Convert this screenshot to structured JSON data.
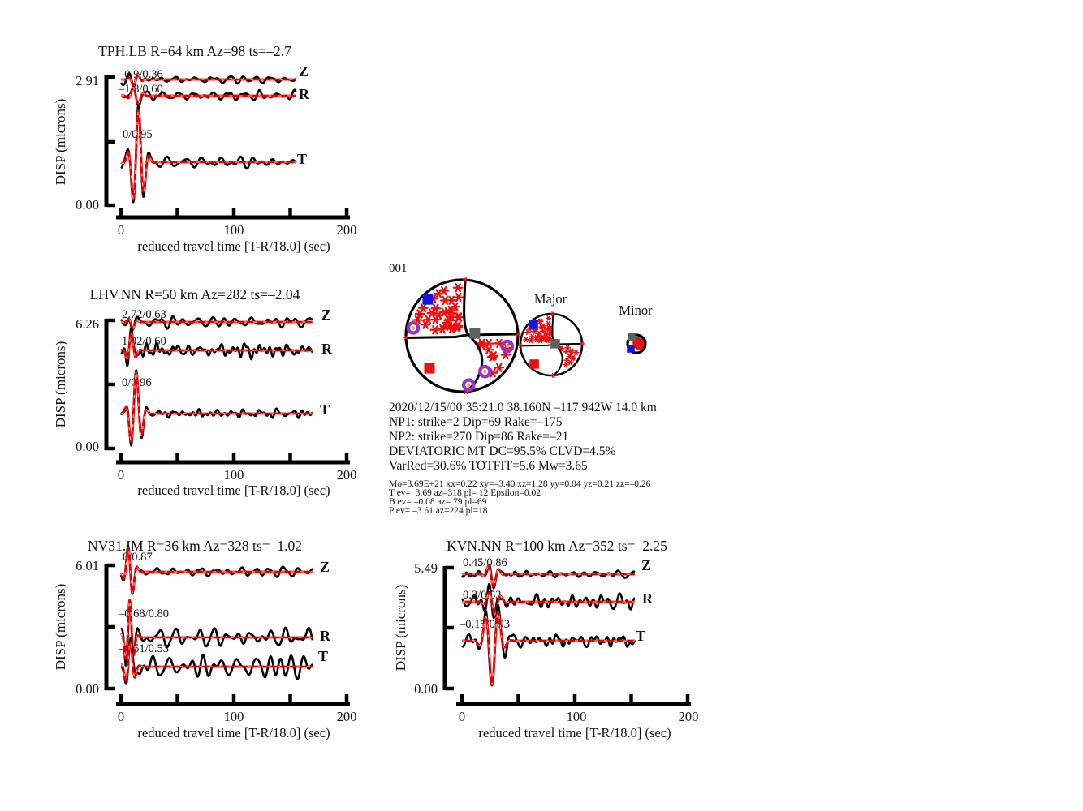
{
  "colors": {
    "data_trace": "#000000",
    "synth_trace": "#e60000",
    "synth_dash": "#ff9a9a",
    "fit_text": "#ac3a32",
    "axis": "#000000",
    "marker_blue": "#1414e0",
    "marker_red": "#e81010",
    "marker_gray": "#5f5f5f",
    "marker_purple": "#9932cc",
    "marker_yellow": "#e8a818",
    "asterisk_red": "#e81010"
  },
  "chart_data": [
    {
      "type": "line",
      "station": "TPH.LB",
      "title": "TPH.LB R=64 km Az=98 ts=–2.7",
      "ylabel": "DISP (microns)",
      "xlabel": "reduced travel time [T-R/18.0] (sec)",
      "ymax": "2.91",
      "ymin": "0.00",
      "ylim_microns": [
        0,
        2.91
      ],
      "xlim": [
        0,
        200
      ],
      "xticks": [
        "0",
        "100",
        "200"
      ],
      "record_length_sec": 155,
      "components": [
        {
          "label": "Z",
          "fit": "–0.9/0.36",
          "wave": {
            "arrival": 13,
            "period": 9,
            "width": 5,
            "amp": 9,
            "phase": 0,
            "noise": 4,
            "seed": 11
          }
        },
        {
          "label": "R",
          "fit": "–1.8/0.60",
          "wave": {
            "arrival": 13,
            "period": 10,
            "width": 6,
            "amp": 13,
            "phase": 3.1,
            "noise": 4.5,
            "seed": 22
          }
        },
        {
          "label": "T",
          "fit": "0/0.95",
          "wave": {
            "arrival": 15,
            "period": 10,
            "width": 7,
            "amp": 72,
            "phase": 1.2,
            "noise": 5,
            "seed": 33
          }
        }
      ]
    },
    {
      "type": "line",
      "station": "LHV.NN",
      "title": "LHV.NN R=50 km Az=282 ts=–2.04",
      "ylabel": "DISP (microns)",
      "xlabel": "reduced travel time [T-R/18.0] (sec)",
      "ymax": "6.26",
      "ymin": "0.00",
      "ylim_microns": [
        0,
        6.26
      ],
      "xlim": [
        0,
        200
      ],
      "xticks": [
        "0",
        "100",
        "200"
      ],
      "record_length_sec": 170,
      "components": [
        {
          "label": "Z",
          "fit": "2.72/0.63",
          "wave": {
            "arrival": 10,
            "period": 9,
            "width": 4,
            "amp": 9,
            "phase": -2,
            "noise": 4,
            "seed": 41
          }
        },
        {
          "label": "R",
          "fit": "1.02/0.60",
          "wave": {
            "arrival": 9,
            "period": 9,
            "width": 4.5,
            "amp": 24,
            "phase": 1.4,
            "noise": 5.5,
            "seed": 52
          }
        },
        {
          "label": "T",
          "fit": "0/0.96",
          "wave": {
            "arrival": 13,
            "period": 10,
            "width": 6.5,
            "amp": 58,
            "phase": 1.2,
            "noise": 4.5,
            "seed": 63
          }
        }
      ]
    },
    {
      "type": "line",
      "station": "NV31.IM",
      "title": "NV31.IM R=36 km Az=328 ts=–1.02",
      "ylabel": "DISP (microns)",
      "xlabel": "reduced travel time [T-R/18.0] (sec)",
      "ymax": "6.01",
      "ymin": "0.00",
      "ylim_microns": [
        0,
        6.01
      ],
      "xlim": [
        0,
        200
      ],
      "xticks": [
        "0",
        "100",
        "200"
      ],
      "record_length_sec": 170,
      "components": [
        {
          "label": "Z",
          "fit": "0/0.87",
          "wave": {
            "arrival": 8,
            "period": 9,
            "width": 5,
            "amp": 36,
            "phase": 2.9,
            "noise": 3.5,
            "seed": 71
          }
        },
        {
          "label": "R",
          "fit": "–0.68/0.80",
          "wave": {
            "arrival": 7.5,
            "period": 8,
            "width": 4.5,
            "amp": 52,
            "phase": 1.35,
            "noise": 9,
            "seed": 82
          }
        },
        {
          "label": "T",
          "fit": "–0.51/0.53",
          "wave": {
            "arrival": 8,
            "period": 9,
            "width": 5,
            "amp": 34,
            "phase": 1.3,
            "noise": 10,
            "seed": 93
          }
        }
      ]
    },
    {
      "type": "line",
      "station": "KVN.NN",
      "title": "KVN.NN R=100 km Az=352 ts=–2.25",
      "ylabel": "DISP (microns)",
      "xlabel": "reduced travel time [T-R/18.0] (sec)",
      "ymax": "5.49",
      "ymin": "0.00",
      "ylim_microns": [
        0,
        5.49
      ],
      "xlim": [
        0,
        200
      ],
      "xticks": [
        "0",
        "100",
        "200"
      ],
      "record_length_sec": 153,
      "components": [
        {
          "label": "Z",
          "fit": "0.45/0.86",
          "wave": {
            "arrival": 27,
            "period": 10,
            "width": 6,
            "amp": 17,
            "phase": -2.2,
            "noise": 4,
            "seed": 101
          }
        },
        {
          "label": "R",
          "fit": "0.3/0.53",
          "wave": {
            "arrival": 28,
            "period": 11,
            "width": 7,
            "amp": 18,
            "phase": -2.2,
            "noise": 6.5,
            "seed": 112
          }
        },
        {
          "label": "T",
          "fit": "–0.15/0.93",
          "wave": {
            "arrival": 27,
            "period": 12,
            "width": 8,
            "amp": 60,
            "phase": -1.3,
            "noise": 6,
            "seed": 123
          }
        }
      ]
    }
  ],
  "beachball_panel": {
    "id_label": "001",
    "major_label": "Major",
    "minor_label": "Minor",
    "main_markers": [
      {
        "shape": "square",
        "color": "#1414e0",
        "fx": -0.61,
        "fy": -0.65
      },
      {
        "shape": "ring",
        "color": "#9932cc",
        "fx": -0.87,
        "fy": -0.14
      },
      {
        "shape": "square",
        "color": "#e81010",
        "fx": -0.58,
        "fy": 0.58
      },
      {
        "shape": "square",
        "color": "#5f5f5f",
        "fx": 0.23,
        "fy": -0.04
      },
      {
        "shape": "ring",
        "color": "#9932cc",
        "fx": 0.81,
        "fy": 0.19
      },
      {
        "shape": "ring",
        "color": "#9932cc",
        "fx": 0.41,
        "fy": 0.64
      },
      {
        "shape": "ring",
        "color": "#9932cc",
        "fx": 0.12,
        "fy": 0.88
      }
    ],
    "major_markers": [
      {
        "shape": "square",
        "color": "#1414e0",
        "fx": -0.58,
        "fy": -0.66
      },
      {
        "shape": "square",
        "color": "#e81010",
        "fx": -0.55,
        "fy": 0.63
      },
      {
        "shape": "square",
        "color": "#5f5f5f",
        "fx": 0.13,
        "fy": -0.03
      }
    ],
    "minor_markers": [
      {
        "shape": "square",
        "color": "#5f5f5f",
        "fx": -0.55,
        "fy": -0.8
      },
      {
        "shape": "square",
        "color": "#1414e0",
        "fx": -0.64,
        "fy": 0.55
      }
    ]
  },
  "event_info": {
    "lines_large": [
      "2020/12/15/00:35:21.0 38.160N –117.942W 14.0 km",
      "NP1: strike=2 Dip=69 Rake=–175",
      "NP2: strike=270 Dip=86 Rake=–21",
      "DEVIATORIC MT DC=95.5% CLVD=4.5%",
      "VarRed=30.6% TOTFIT=5.6 Mw=3.65"
    ],
    "lines_small": [
      "Mo=3.69E+21 xx=0.22 xy=–3.40 xz=1.28 yy=0.04 yz=0.21 zz=–0.26",
      "T ev=  3.69 az=318 pl= 12 Epsilon=0.02",
      "B ev= –0.08 az= 79 pl=69",
      "P ev= –3.61 az=224 pl=18"
    ]
  }
}
